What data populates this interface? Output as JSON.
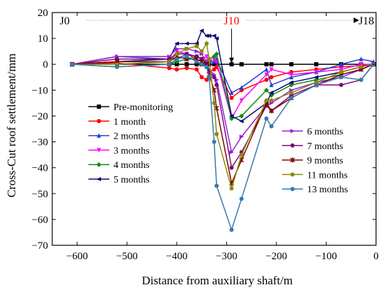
{
  "chart_data": {
    "type": "line",
    "xlabel": "Distance from auxiliary shaft/m",
    "ylabel": "Cross-Cut roof settlement/mm",
    "xlim": [
      -650,
      0
    ],
    "ylim": [
      -70,
      20
    ],
    "xticks": [
      -600,
      -500,
      -400,
      -300,
      -200,
      -100,
      0
    ],
    "xtick_labels": [
      "−600",
      "−500",
      "−400",
      "−300",
      "−200",
      "−100",
      "0"
    ],
    "yticks": [
      20,
      10,
      0,
      -10,
      -20,
      -30,
      -40,
      -50,
      -60,
      -70
    ],
    "ytick_labels": [
      "20",
      "10",
      "0",
      "−10",
      "−20",
      "−30",
      "−40",
      "−50",
      "−60",
      "−70"
    ],
    "grid": false,
    "legend_placement": "lower-left and lower-right",
    "annotations": {
      "J0": "J0",
      "J10": "J10",
      "J18": "J18",
      "J10_color": "#ff0000"
    },
    "x": [
      -610,
      -520,
      -415,
      -400,
      -380,
      -360,
      -350,
      -340,
      -335,
      -325,
      -320,
      -290,
      -270,
      -220,
      -210,
      -170,
      -120,
      -70,
      -30,
      -5
    ],
    "series": [
      {
        "name": "Pre-monitoring",
        "color": "#000000",
        "marker": "square",
        "values": [
          0,
          0,
          0,
          0,
          0,
          0,
          0,
          0,
          0,
          0,
          0,
          0,
          0,
          0,
          0,
          0,
          0,
          0,
          0,
          0
        ]
      },
      {
        "name": "1 month",
        "color": "#ff0000",
        "marker": "circle",
        "values": [
          0,
          0.5,
          -1.5,
          -2,
          -1.5,
          -2,
          -5,
          -6,
          -3,
          -2,
          -1,
          -13,
          -10,
          -6,
          -5,
          -3,
          -2,
          -1,
          -0.5,
          0
        ]
      },
      {
        "name": "2 months",
        "color": "#1f3fd6",
        "marker": "triangle-up",
        "values": [
          0,
          3,
          2,
          2,
          4,
          2,
          1,
          -1,
          1,
          1,
          2,
          -11,
          -9,
          -2,
          -8,
          -5,
          -3,
          0,
          2,
          1
        ]
      },
      {
        "name": "3 months",
        "color": "#ff00ff",
        "marker": "triangle-down",
        "values": [
          0,
          0,
          1,
          5,
          4,
          3,
          2,
          3,
          1,
          2,
          1,
          -21,
          -14,
          -4,
          -2,
          -4,
          -3,
          -2,
          0,
          0
        ]
      },
      {
        "name": "4 months",
        "color": "#138a13",
        "marker": "diamond",
        "values": [
          0,
          -1,
          0,
          1,
          2,
          3,
          2,
          1,
          2,
          3,
          4,
          -21,
          -20,
          -10,
          -12,
          -8,
          -6,
          -4,
          -2,
          0
        ]
      },
      {
        "name": "5 months",
        "color": "#0a0a6e",
        "marker": "triangle-left",
        "values": [
          0,
          1,
          2,
          8,
          8,
          8,
          13,
          11,
          11,
          11,
          10,
          -20,
          -22,
          -15,
          -11,
          -7,
          -5,
          -3,
          -1,
          0
        ]
      },
      {
        "name": "6 months",
        "color": "#9a1dd8",
        "marker": "triangle-right",
        "values": [
          0,
          3,
          3,
          6,
          6,
          5,
          4,
          1,
          -2,
          -4,
          -6,
          -34,
          -28,
          -16,
          -15,
          -10,
          -7,
          -5,
          -2,
          0
        ]
      },
      {
        "name": "7 months",
        "color": "#7a0a7a",
        "marker": "hexagon",
        "values": [
          0,
          2,
          2,
          4,
          4,
          3,
          2,
          0,
          -3,
          -5,
          -8,
          -40,
          -34,
          -16,
          -18,
          -12,
          -8,
          -8,
          -6,
          0
        ]
      },
      {
        "name": "9 months",
        "color": "#800000",
        "marker": "star",
        "values": [
          0,
          1,
          1,
          3,
          2,
          2,
          1,
          0,
          -4,
          -10,
          -17,
          -46,
          -37,
          -15,
          -18,
          -13,
          -8,
          -4,
          -2,
          0
        ]
      },
      {
        "name": "11 months",
        "color": "#8a8a00",
        "marker": "circle",
        "values": [
          0,
          0,
          1,
          4,
          6,
          7,
          5,
          8,
          2,
          -15,
          -27,
          -48,
          -35,
          -14,
          -14,
          -11,
          -7,
          -3,
          -1,
          0
        ]
      },
      {
        "name": "13 months",
        "color": "#3a78b0",
        "marker": "circle",
        "values": [
          0,
          -1,
          0,
          2,
          3,
          1,
          0,
          -1,
          -5,
          -30,
          -47,
          -64,
          -52,
          -21,
          -24,
          -13,
          -8,
          -5,
          -6,
          0
        ]
      }
    ]
  }
}
